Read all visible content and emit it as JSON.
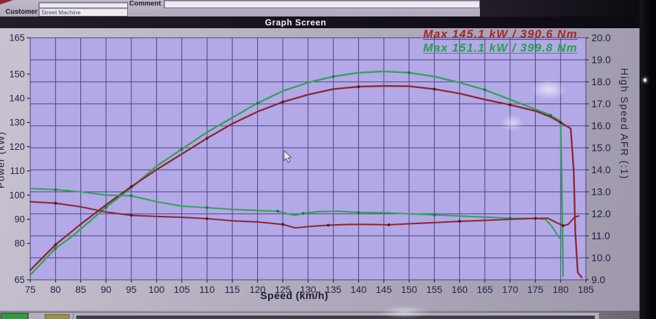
{
  "header": {
    "title": "Graph Screen",
    "customer_label": "Customer",
    "customer_value": "Street Machine",
    "comment_label": "Comment",
    "comment_value": ""
  },
  "chart_data": {
    "type": "line",
    "title": "Graph Screen",
    "xlabel": "Speed (km/h)",
    "ylabel_left": "Power (kW)",
    "ylabel_right": "High Speed AFR (:1)",
    "x_range": [
      75,
      185
    ],
    "x_tick_step": 5,
    "y_left_range": [
      65,
      165
    ],
    "y_left_ticks": [
      165,
      150,
      140,
      130,
      120,
      110,
      100,
      90,
      80,
      65
    ],
    "y_right_range": [
      9,
      20
    ],
    "y_right_ticks": [
      20,
      19,
      18,
      17,
      16,
      15,
      14,
      13,
      12,
      11,
      10,
      9
    ],
    "grid": true,
    "legend": "none",
    "annotations": [
      {
        "text": "Max 145.1 kW / 390.6 Nm",
        "color": "#a32828"
      },
      {
        "text": "Max 151.1 kW / 399.8 Nm",
        "color": "#23a24b"
      }
    ],
    "series": [
      {
        "name": "power-green-run",
        "axis": "left",
        "unit": "kW",
        "color": "#2fa357",
        "marker_color": "#157a3e",
        "points": [
          [
            75,
            67
          ],
          [
            80,
            78
          ],
          [
            83,
            82.5
          ],
          [
            85,
            86
          ],
          [
            90,
            95
          ],
          [
            95,
            103
          ],
          [
            100,
            112
          ],
          [
            105,
            119
          ],
          [
            110,
            126
          ],
          [
            115,
            132
          ],
          [
            120,
            138
          ],
          [
            125,
            143
          ],
          [
            130,
            146.5
          ],
          [
            135,
            149
          ],
          [
            140,
            150.6
          ],
          [
            145,
            151.1
          ],
          [
            150,
            150.6
          ],
          [
            155,
            149
          ],
          [
            160,
            146.5
          ],
          [
            165,
            143.5
          ],
          [
            170,
            139.5
          ],
          [
            175,
            135.5
          ],
          [
            178,
            133
          ],
          [
            180,
            130.5
          ],
          [
            180.3,
            95
          ],
          [
            180.5,
            66.5
          ]
        ]
      },
      {
        "name": "power-red-run",
        "axis": "left",
        "unit": "kW",
        "color": "#8b2531",
        "marker_color": "#611722",
        "points": [
          [
            75,
            69
          ],
          [
            80,
            79.5
          ],
          [
            85,
            88
          ],
          [
            90,
            96
          ],
          [
            95,
            103.5
          ],
          [
            100,
            110.5
          ],
          [
            105,
            117
          ],
          [
            110,
            123.5
          ],
          [
            115,
            129.5
          ],
          [
            120,
            134.5
          ],
          [
            125,
            138.5
          ],
          [
            130,
            141.5
          ],
          [
            135,
            143.8
          ],
          [
            140,
            144.8
          ],
          [
            145,
            145.1
          ],
          [
            150,
            145
          ],
          [
            155,
            143.8
          ],
          [
            160,
            142
          ],
          [
            165,
            139.5
          ],
          [
            170,
            137.3
          ],
          [
            175,
            134.8
          ],
          [
            178,
            132.3
          ],
          [
            180,
            130
          ],
          [
            182,
            127.5
          ],
          [
            182.6,
            110
          ],
          [
            182.9,
            85
          ],
          [
            183.4,
            68
          ],
          [
            184.2,
            66
          ]
        ]
      },
      {
        "name": "afr-green-run",
        "axis": "right",
        "unit": ":1",
        "color": "#2fa357",
        "marker_color": "#157a3e",
        "points": [
          [
            75,
            13.15
          ],
          [
            80,
            13.1
          ],
          [
            85,
            13.0
          ],
          [
            90,
            12.85
          ],
          [
            95,
            12.82
          ],
          [
            100,
            12.55
          ],
          [
            105,
            12.35
          ],
          [
            110,
            12.28
          ],
          [
            115,
            12.2
          ],
          [
            120,
            12.15
          ],
          [
            124,
            12.12
          ],
          [
            126,
            12.0
          ],
          [
            127.5,
            11.93
          ],
          [
            129,
            12.02
          ],
          [
            132,
            12.1
          ],
          [
            136,
            12.12
          ],
          [
            140,
            12.06
          ],
          [
            145,
            12.05
          ],
          [
            150,
            12.0
          ],
          [
            155,
            11.95
          ],
          [
            160,
            11.9
          ],
          [
            165,
            11.85
          ],
          [
            170,
            11.8
          ],
          [
            175,
            11.79
          ],
          [
            177,
            11.75
          ],
          [
            178.2,
            11.45
          ],
          [
            179.2,
            11.1
          ],
          [
            179.8,
            10.9
          ]
        ]
      },
      {
        "name": "afr-red-run",
        "axis": "right",
        "unit": ":1",
        "color": "#8b2531",
        "marker_color": "#611722",
        "points": [
          [
            75,
            12.55
          ],
          [
            80,
            12.48
          ],
          [
            85,
            12.32
          ],
          [
            90,
            12.08
          ],
          [
            95,
            11.93
          ],
          [
            100,
            11.88
          ],
          [
            105,
            11.84
          ],
          [
            110,
            11.78
          ],
          [
            115,
            11.68
          ],
          [
            120,
            11.63
          ],
          [
            125,
            11.52
          ],
          [
            127.5,
            11.36
          ],
          [
            130,
            11.42
          ],
          [
            134,
            11.48
          ],
          [
            138,
            11.52
          ],
          [
            142,
            11.52
          ],
          [
            146,
            11.5
          ],
          [
            150,
            11.55
          ],
          [
            155,
            11.6
          ],
          [
            160,
            11.66
          ],
          [
            165,
            11.7
          ],
          [
            170,
            11.75
          ],
          [
            175,
            11.79
          ],
          [
            177.5,
            11.8
          ],
          [
            179,
            11.62
          ],
          [
            180.5,
            11.46
          ],
          [
            181.5,
            11.52
          ],
          [
            182.2,
            11.7
          ],
          [
            182.8,
            11.86
          ],
          [
            183.6,
            11.9
          ]
        ]
      }
    ]
  }
}
